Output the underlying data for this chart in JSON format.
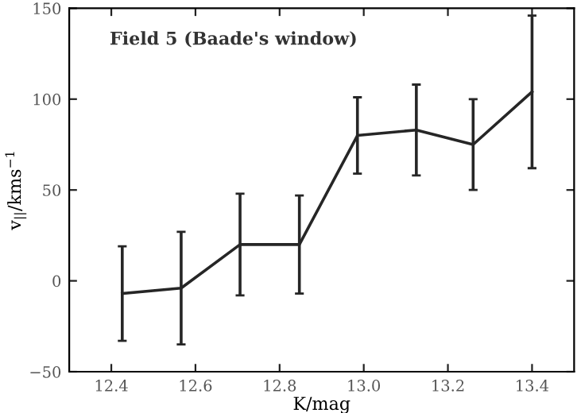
{
  "chart_data": {
    "type": "line",
    "xlabel": "K/mag",
    "ylabel": "v$_{||}$/kms$^{−1}$",
    "annotations": [
      "Field 5 (Baade's window)"
    ],
    "x": [
      12.426,
      12.566,
      12.706,
      12.847,
      12.985,
      13.125,
      13.26,
      13.4
    ],
    "series": [
      {
        "color": "#262626",
        "values": [
          -7,
          -4,
          20,
          20,
          80,
          83,
          75,
          104
        ],
        "errors": [
          26,
          31,
          28,
          27,
          21,
          25,
          25,
          42
        ]
      }
    ],
    "xlim": [
      12.3,
      13.5
    ],
    "xticks": [
      12.4,
      12.6,
      12.8,
      {
        "value": 13,
        "label": "13.0"
      },
      13.2,
      13.4
    ],
    "ylim": [
      -50,
      150
    ],
    "yticks": [
      -50,
      0,
      50,
      100,
      150
    ],
    "grid": false,
    "legend": false,
    "marker": "none",
    "line_style": "solid"
  }
}
